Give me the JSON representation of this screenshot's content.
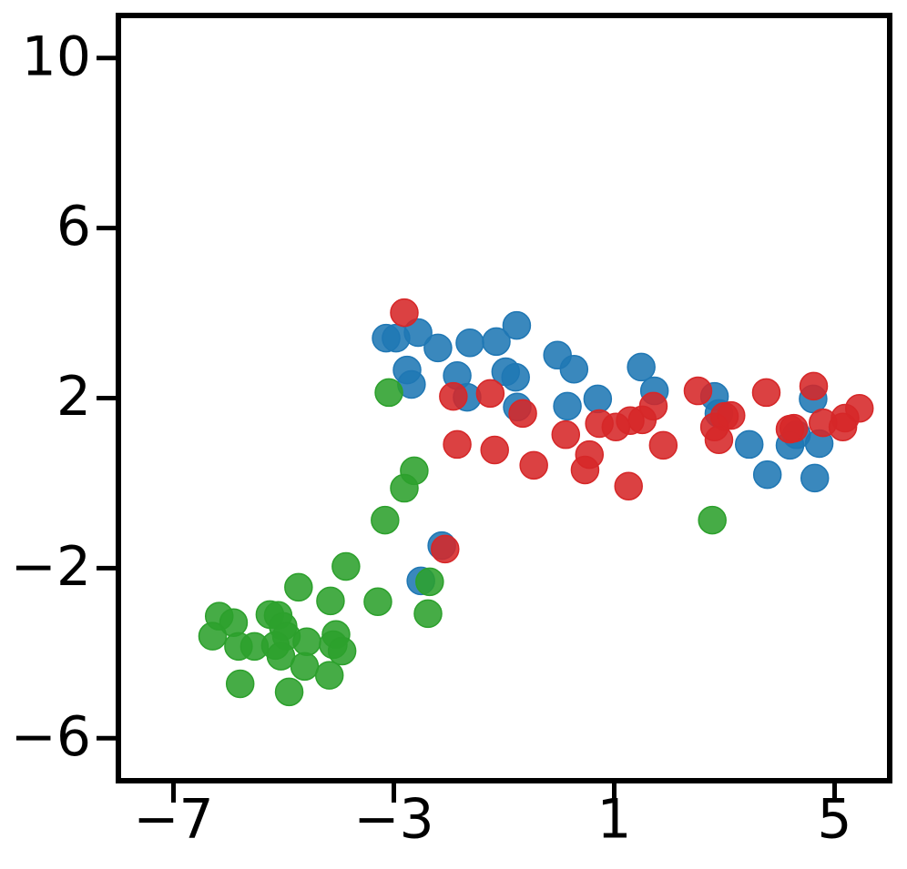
{
  "chart_data": {
    "type": "scatter",
    "xlim": [
      -8,
      6
    ],
    "ylim": [
      -7,
      11
    ],
    "xticks": [
      {
        "value": -7,
        "label": "−7"
      },
      {
        "value": -3,
        "label": "−3"
      },
      1,
      5
    ],
    "yticks": [
      {
        "value": -6,
        "label": "−6"
      },
      {
        "value": -2,
        "label": "−2"
      },
      2,
      6,
      10
    ],
    "series": [
      {
        "color": "#1f77b4",
        "x": [
          -3.14,
          -2.96,
          -2.56,
          -2.2,
          -2.76,
          -2.68,
          -1.62,
          -1.14,
          -0.77,
          -1.85,
          -1.67,
          -0.97,
          -0.79,
          -0.76,
          -0.03,
          0.27,
          0.15,
          0.7,
          1.49,
          1.73,
          2.82,
          2.9,
          3.45,
          3.78,
          4.19,
          4.31,
          4.61,
          4.72,
          4.64,
          -2.13,
          -2.51
        ],
        "values": [
          3.41,
          3.41,
          3.54,
          3.18,
          2.66,
          2.32,
          3.3,
          3.33,
          3.71,
          2.53,
          2.02,
          2.62,
          2.49,
          1.79,
          3.01,
          2.68,
          1.81,
          1.98,
          2.73,
          2.17,
          2.04,
          1.64,
          0.91,
          0.2,
          0.89,
          1.14,
          1.98,
          0.93,
          0.12,
          -1.47,
          -2.3
        ]
      },
      {
        "color": "#d62728",
        "x": [
          -2.81,
          -1.92,
          -1.25,
          -0.66,
          -1.85,
          -1.17,
          -0.46,
          0.12,
          0.55,
          0.47,
          0.73,
          1.03,
          1.26,
          1.29,
          1.51,
          1.71,
          1.89,
          2.52,
          2.82,
          2.9,
          3.0,
          3.12,
          3.76,
          4.19,
          4.26,
          4.62,
          4.79,
          5.15,
          5.19,
          5.45,
          -2.07
        ],
        "values": [
          4.01,
          2.04,
          2.11,
          1.64,
          0.91,
          0.78,
          0.42,
          1.14,
          0.67,
          0.31,
          1.4,
          1.32,
          -0.07,
          1.47,
          1.49,
          1.81,
          0.89,
          2.17,
          1.32,
          1.02,
          1.57,
          1.59,
          2.13,
          1.27,
          1.29,
          2.28,
          1.42,
          1.32,
          1.53,
          1.76,
          -1.55
        ]
      },
      {
        "color": "#2ca02c",
        "x": [
          -3.09,
          -2.63,
          -2.81,
          -3.16,
          2.78,
          -3.87,
          -3.29,
          -2.35,
          -2.38,
          -4.73,
          -4.15,
          -6.17,
          -5.91,
          -6.29,
          -5.82,
          -5.53,
          -5.25,
          -5.1,
          -5.01,
          -4.95,
          -5.15,
          -5.05,
          -4.58,
          -4.05,
          -4.1,
          -3.94,
          -4.62,
          -4.17,
          -5.79,
          -4.9
        ],
        "values": [
          2.13,
          0.29,
          -0.12,
          -0.87,
          -0.87,
          -1.96,
          -2.79,
          -2.32,
          -3.07,
          -2.45,
          -2.77,
          -3.13,
          -3.28,
          -3.6,
          -3.84,
          -3.84,
          -3.09,
          -3.11,
          -3.37,
          -3.6,
          -3.82,
          -4.07,
          -3.73,
          -3.56,
          -3.8,
          -3.95,
          -4.31,
          -4.52,
          -4.72,
          -4.91
        ]
      }
    ]
  }
}
